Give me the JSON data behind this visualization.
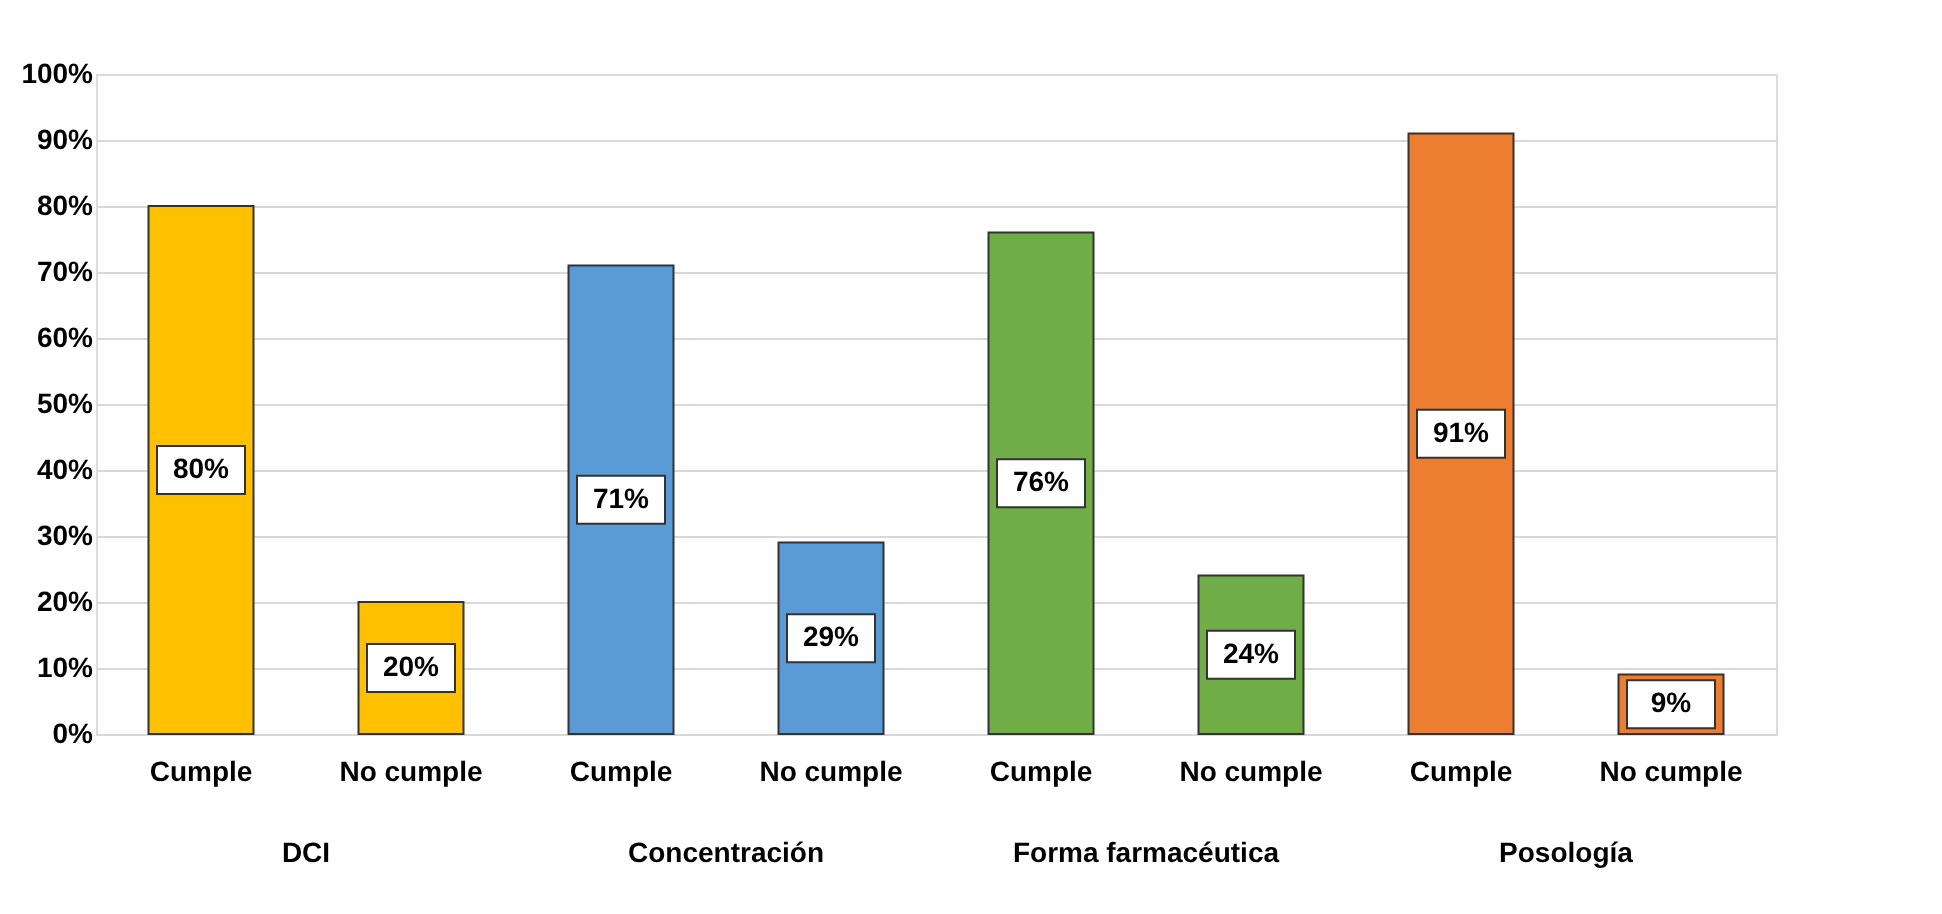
{
  "chart_data": {
    "type": "bar",
    "categories": [
      "Cumple",
      "No cumple",
      "Cumple",
      "No cumple",
      "Cumple",
      "No cumple",
      "Cumple",
      "No cumple"
    ],
    "values": [
      80,
      20,
      71,
      29,
      76,
      24,
      91,
      9
    ],
    "colors": [
      "#ffc000",
      "#ffc000",
      "#5b9bd5",
      "#5b9bd5",
      "#70ad47",
      "#70ad47",
      "#ed7d31",
      "#ed7d31"
    ],
    "value_labels": [
      "80%",
      "20%",
      "71%",
      "29%",
      "76%",
      "24%",
      "91%",
      "9%"
    ],
    "annotations": [
      "DCI",
      "Concentración",
      "Forma farmacéutica",
      "Posología"
    ],
    "ylim": [
      0,
      100
    ],
    "yticks": [
      {
        "value": 0,
        "label": "0%"
      },
      {
        "value": 10,
        "label": "10%"
      },
      {
        "value": 20,
        "label": "20%"
      },
      {
        "value": 30,
        "label": "30%"
      },
      {
        "value": 40,
        "label": "40%"
      },
      {
        "value": 50,
        "label": "50%"
      },
      {
        "value": 60,
        "label": "60%"
      },
      {
        "value": 70,
        "label": "70%"
      },
      {
        "value": 80,
        "label": "80%"
      },
      {
        "value": 90,
        "label": "90%"
      },
      {
        "value": 100,
        "label": "100%"
      }
    ],
    "grid": "y"
  }
}
